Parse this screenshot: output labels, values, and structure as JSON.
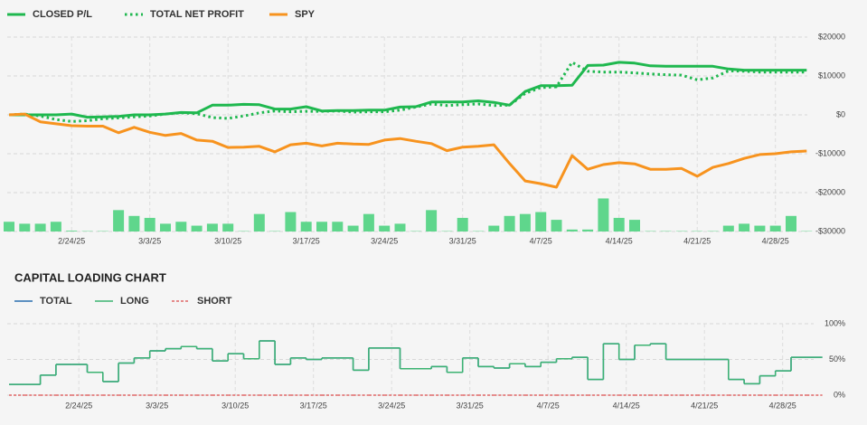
{
  "chart_data": [
    {
      "type": "line",
      "categories": [
        null,
        null,
        null,
        null,
        "2/24/25",
        null,
        null,
        null,
        null,
        "3/3/25",
        null,
        null,
        null,
        null,
        "3/10/25",
        null,
        null,
        null,
        null,
        "3/17/25",
        null,
        null,
        null,
        null,
        "3/24/25",
        null,
        null,
        null,
        null,
        "3/31/25",
        null,
        null,
        null,
        null,
        "4/7/25",
        null,
        null,
        null,
        null,
        "4/14/25",
        null,
        null,
        null,
        null,
        "4/21/25",
        null,
        null,
        null,
        null,
        "4/28/25",
        null,
        null
      ],
      "series": [
        {
          "name": "CLOSED P/L",
          "color": "#1fb84f",
          "style": "solid",
          "values": [
            0,
            0,
            0,
            0,
            200,
            -600,
            -500,
            -400,
            0,
            0,
            200,
            600,
            500,
            2500,
            2500,
            2700,
            2600,
            1500,
            1500,
            2100,
            1000,
            1100,
            1100,
            1200,
            1200,
            2000,
            2100,
            3300,
            3300,
            3300,
            3600,
            3200,
            2500,
            6000,
            7500,
            7500,
            7600,
            12700,
            12800,
            13500,
            13300,
            12600,
            12500,
            12500,
            12500,
            12500,
            11800,
            11500,
            11500,
            11500,
            11500,
            11500
          ]
        },
        {
          "name": "TOTAL NET PROFIT",
          "color": "#1fb84f",
          "style": "dotted",
          "values": [
            0,
            200,
            -300,
            -1200,
            -1700,
            -1500,
            -1000,
            -800,
            -500,
            -300,
            200,
            500,
            300,
            -700,
            -900,
            -300,
            500,
            1000,
            800,
            900,
            900,
            1000,
            700,
            800,
            800,
            1200,
            2000,
            2800,
            2400,
            2600,
            2800,
            2400,
            2500,
            5500,
            7000,
            7200,
            13500,
            11200,
            11000,
            11000,
            10800,
            10500,
            10300,
            10200,
            9000,
            9500,
            11300,
            11200,
            11000,
            11000,
            11000,
            11000
          ]
        },
        {
          "name": "SPY",
          "color": "#f7931e",
          "style": "solid",
          "values": [
            0,
            200,
            -1800,
            -2300,
            -2800,
            -2900,
            -2900,
            -4600,
            -3200,
            -4500,
            -5300,
            -4800,
            -6500,
            -6800,
            -8400,
            -8300,
            -8100,
            -9500,
            -7700,
            -7300,
            -8000,
            -7300,
            -7500,
            -7600,
            -6500,
            -6100,
            -6800,
            -7400,
            -9200,
            -8300,
            -8100,
            -7700,
            -12500,
            -17000,
            -17700,
            -18600,
            -10500,
            -14000,
            -12800,
            -12300,
            -12600,
            -14000,
            -14000,
            -13800,
            -15800,
            -13500,
            -12500,
            -11200,
            -10200,
            -10000,
            -9500,
            -9300
          ]
        }
      ],
      "bars": {
        "color": "#5fd68c",
        "values": [
          -27500,
          -28000,
          -28000,
          -27500,
          -29800,
          -29900,
          -29900,
          -24500,
          -26000,
          -26500,
          -28000,
          -27500,
          -28500,
          -28000,
          -28000,
          -29900,
          -25500,
          -29900,
          -25000,
          -27500,
          -27500,
          -27500,
          -28500,
          -25500,
          -28500,
          -28000,
          -29900,
          -24500,
          -29900,
          -26500,
          -29900,
          -28500,
          -26000,
          -25500,
          -25000,
          -27000,
          -29500,
          -29500,
          -21500,
          -26500,
          -27000,
          -29900,
          -29900,
          -29900,
          -29900,
          -29900,
          -28500,
          -28000,
          -28500,
          -28500,
          -26000,
          -29900
        ]
      },
      "ylim": [
        -30000,
        20000
      ],
      "yticks": [
        {
          "value": 20000,
          "label": "$20000"
        },
        {
          "value": 10000,
          "label": "$10000"
        },
        {
          "value": 0,
          "label": "$0"
        },
        {
          "value": -10000,
          "label": "-$10000"
        },
        {
          "value": -20000,
          "label": "-$20000"
        },
        {
          "value": -30000,
          "label": "-$30000"
        }
      ],
      "grid": true
    },
    {
      "type": "step",
      "title": "CAPITAL LOADING CHART",
      "categories": [
        null,
        null,
        null,
        null,
        "2/24/25",
        null,
        null,
        null,
        null,
        "3/3/25",
        null,
        null,
        null,
        null,
        "3/10/25",
        null,
        null,
        null,
        null,
        "3/17/25",
        null,
        null,
        null,
        null,
        "3/24/25",
        null,
        null,
        null,
        null,
        "3/31/25",
        null,
        null,
        null,
        null,
        "4/7/25",
        null,
        null,
        null,
        null,
        "4/14/25",
        null,
        null,
        null,
        null,
        "4/21/25",
        null,
        null,
        null,
        null,
        "4/28/25",
        null,
        null
      ],
      "series": [
        {
          "name": "TOTAL",
          "color": "#2a6fb0",
          "style": "solid",
          "values": [
            15,
            15,
            28,
            43,
            43,
            32,
            19,
            45,
            52,
            62,
            65,
            68,
            65,
            48,
            58,
            51,
            76,
            43,
            52,
            50,
            52,
            52,
            35,
            66,
            66,
            37,
            37,
            40,
            32,
            52,
            40,
            38,
            44,
            40,
            46,
            51,
            53,
            22,
            72,
            50,
            70,
            72,
            50,
            50,
            50,
            50,
            22,
            16,
            27,
            34,
            53,
            53
          ]
        },
        {
          "name": "LONG",
          "color": "#3cb371",
          "style": "solid",
          "values": [
            15,
            15,
            28,
            43,
            43,
            32,
            19,
            45,
            52,
            62,
            65,
            68,
            65,
            48,
            58,
            51,
            76,
            43,
            52,
            50,
            52,
            52,
            35,
            66,
            66,
            37,
            37,
            40,
            32,
            52,
            40,
            38,
            44,
            40,
            46,
            51,
            53,
            22,
            72,
            50,
            70,
            72,
            50,
            50,
            50,
            50,
            22,
            16,
            27,
            34,
            53,
            53
          ]
        },
        {
          "name": "SHORT",
          "color": "#e06666",
          "style": "dashed",
          "values": [
            0,
            0,
            0,
            0,
            0,
            0,
            0,
            0,
            0,
            0,
            0,
            0,
            0,
            0,
            0,
            0,
            0,
            0,
            0,
            0,
            0,
            0,
            0,
            0,
            0,
            0,
            0,
            0,
            0,
            0,
            0,
            0,
            0,
            0,
            0,
            0,
            0,
            0,
            0,
            0,
            0,
            0,
            0,
            0,
            0,
            0,
            0,
            0,
            0,
            0,
            0,
            0
          ]
        }
      ],
      "ylim": [
        0,
        100
      ],
      "yticks": [
        {
          "value": 0,
          "label": "0%"
        },
        {
          "value": 50,
          "label": "50%"
        },
        {
          "value": 100,
          "label": "100%"
        }
      ],
      "grid": true
    }
  ]
}
